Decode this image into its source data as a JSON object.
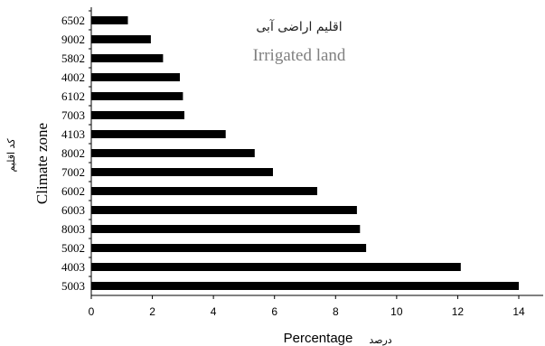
{
  "chart_data": {
    "type": "bar",
    "orientation": "horizontal",
    "title": "اقلیم اراضی آبی",
    "subtitle": "Irrigated land",
    "xlabel": "Percentage",
    "xlabel_fa": "درصد",
    "ylabel": "Climate zone",
    "ylabel_fa": "کد اقلیم",
    "xlim": [
      0,
      14
    ],
    "xticks": [
      "0",
      "2",
      "4",
      "6",
      "8",
      "10",
      "12",
      "14"
    ],
    "categories": [
      "6502",
      "9002",
      "5802",
      "4002",
      "6102",
      "7003",
      "4103",
      "8002",
      "7002",
      "6002",
      "6003",
      "8003",
      "5002",
      "4003",
      "5003"
    ],
    "values": [
      1.2,
      1.95,
      2.35,
      2.9,
      3.0,
      3.05,
      4.4,
      5.35,
      5.95,
      7.4,
      8.7,
      8.8,
      9.0,
      12.1,
      14.0
    ],
    "bar_color": "#000000",
    "grid": false,
    "legend": "none"
  }
}
